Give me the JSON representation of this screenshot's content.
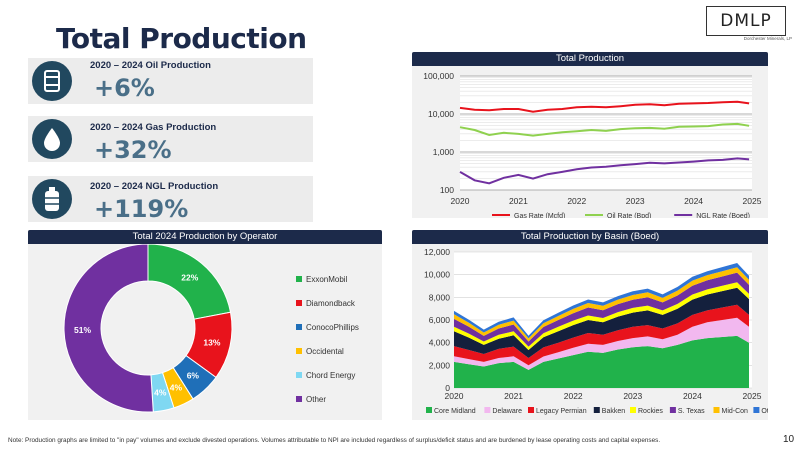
{
  "page": {
    "title": "Total Production",
    "logo_text": "DMLP",
    "logo_subtext": "Dorchester Minerals, LP",
    "footnote": "Note: Production graphs are limited to \"in pay\" volumes and exclude divested operations. Volumes attributable to NPI are included regardless of surplus/deficit status and are burdened by lease operating costs and capital expenses.",
    "page_number": "10"
  },
  "stats": [
    {
      "label": "2020 – 2024 Oil Production",
      "value": "+6%",
      "icon": "oil-barrel-icon"
    },
    {
      "label": "2020 – 2024 Gas Production",
      "value": "+32%",
      "icon": "gas-drop-icon"
    },
    {
      "label": "2020 – 2024 NGL Production",
      "value": "+119%",
      "icon": "ngl-tank-icon"
    }
  ],
  "colors": {
    "navy": "#1c2a4a",
    "accent": "#4a6f88",
    "icon_bg": "#21485f"
  },
  "chart_data": [
    {
      "type": "line",
      "title": "Total Production",
      "yscale": "log",
      "ylim": [
        100,
        100000
      ],
      "yticks": [
        100,
        1000,
        10000,
        100000
      ],
      "ytick_labels": [
        "100",
        "1,000",
        "10,000",
        "100,000"
      ],
      "xlim": [
        2020,
        2025
      ],
      "xticks": [
        2020,
        2021,
        2022,
        2023,
        2024,
        2025
      ],
      "xtick_labels": [
        "2020",
        "2021",
        "2022",
        "2023",
        "2024",
        "2025"
      ],
      "grid": true,
      "legend_position": "bottom",
      "x": [
        2020.0,
        2020.25,
        2020.5,
        2020.75,
        2021.0,
        2021.25,
        2021.5,
        2021.75,
        2022.0,
        2022.25,
        2022.5,
        2022.75,
        2023.0,
        2023.25,
        2023.5,
        2023.75,
        2024.0,
        2024.25,
        2024.5,
        2024.75,
        2024.95
      ],
      "series": [
        {
          "name": "Gas Rate (Mcfd)",
          "color": "#e8131c",
          "values": [
            14500,
            13000,
            12500,
            13500,
            13500,
            11500,
            13000,
            13500,
            15000,
            15500,
            15000,
            16000,
            17500,
            18000,
            17000,
            18500,
            19000,
            19500,
            20500,
            21000,
            19000
          ]
        },
        {
          "name": "Oil Rate (Bpd)",
          "color": "#8fd14f",
          "values": [
            4500,
            3800,
            2800,
            3200,
            3000,
            2700,
            3000,
            3300,
            3500,
            3800,
            3600,
            4000,
            4200,
            4300,
            4100,
            4600,
            4700,
            4800,
            5300,
            5500,
            4900
          ]
        },
        {
          "name": "NGL Rate (Boed)",
          "color": "#7030a0",
          "values": [
            300,
            180,
            150,
            210,
            250,
            200,
            260,
            300,
            350,
            390,
            410,
            450,
            480,
            520,
            500,
            530,
            560,
            600,
            620,
            680,
            640
          ]
        }
      ]
    },
    {
      "type": "pie",
      "title": "Total 2024 Production by Operator",
      "donut": true,
      "legend_position": "right",
      "categories": [
        "ExxonMobil",
        "Diamondback",
        "ConocoPhillips",
        "Occidental",
        "Chord Energy",
        "Other"
      ],
      "values": [
        22,
        13,
        6,
        4,
        4,
        51
      ],
      "labels": [
        "22%",
        "13%",
        "6%",
        "4%",
        "4%",
        "51%"
      ],
      "colors": [
        "#21b24b",
        "#e8131c",
        "#1f6fb8",
        "#ffc000",
        "#7fd8f2",
        "#7030a0"
      ]
    },
    {
      "type": "area",
      "stacked": true,
      "title": "Total Production by Basin (Boed)",
      "ylim": [
        0,
        12000
      ],
      "yticks": [
        0,
        2000,
        4000,
        6000,
        8000,
        10000,
        12000
      ],
      "ytick_labels": [
        "0",
        "2,000",
        "4,000",
        "6,000",
        "8,000",
        "10,000",
        "12,000"
      ],
      "xlim": [
        2020,
        2025
      ],
      "xticks": [
        2020,
        2021,
        2022,
        2023,
        2024,
        2025
      ],
      "xtick_labels": [
        "2020",
        "2021",
        "2022",
        "2023",
        "2024",
        "2025"
      ],
      "grid": true,
      "legend_position": "bottom",
      "x": [
        2020.0,
        2020.25,
        2020.5,
        2020.75,
        2021.0,
        2021.25,
        2021.5,
        2021.75,
        2022.0,
        2022.25,
        2022.5,
        2022.75,
        2023.0,
        2023.25,
        2023.5,
        2023.75,
        2024.0,
        2024.25,
        2024.5,
        2024.75,
        2024.95
      ],
      "series": [
        {
          "name": "Core Midland",
          "color": "#21b24b",
          "values": [
            2300,
            2100,
            1900,
            2200,
            2300,
            1600,
            2300,
            2600,
            2900,
            3200,
            3100,
            3400,
            3600,
            3700,
            3500,
            3800,
            4200,
            4400,
            4500,
            4600,
            4000
          ]
        },
        {
          "name": "Delaware",
          "color": "#f2b8ef",
          "values": [
            500,
            450,
            400,
            450,
            500,
            400,
            480,
            550,
            650,
            700,
            700,
            750,
            800,
            850,
            800,
            900,
            1200,
            1400,
            1500,
            1600,
            1400
          ]
        },
        {
          "name": "Legacy Permian",
          "color": "#e8131c",
          "values": [
            900,
            800,
            700,
            800,
            850,
            650,
            800,
            850,
            900,
            950,
            900,
            950,
            1000,
            1000,
            950,
            1000,
            1050,
            1050,
            1100,
            1150,
            1050
          ]
        },
        {
          "name": "Bakken",
          "color": "#14203d",
          "values": [
            1300,
            1100,
            800,
            900,
            1000,
            700,
            900,
            1000,
            1100,
            1150,
            1100,
            1200,
            1250,
            1300,
            1200,
            1300,
            1350,
            1400,
            1450,
            1500,
            1400
          ]
        },
        {
          "name": "Rockies",
          "color": "#ffff00",
          "values": [
            400,
            350,
            300,
            350,
            350,
            300,
            350,
            400,
            400,
            400,
            380,
            400,
            420,
            420,
            400,
            420,
            450,
            450,
            470,
            480,
            450
          ]
        },
        {
          "name": "S. Texas",
          "color": "#7030a0",
          "values": [
            700,
            600,
            500,
            550,
            600,
            450,
            550,
            600,
            650,
            700,
            680,
            700,
            720,
            740,
            700,
            740,
            780,
            800,
            820,
            850,
            800
          ]
        },
        {
          "name": "Mid-Con",
          "color": "#ffc000",
          "values": [
            400,
            350,
            300,
            330,
            350,
            280,
            330,
            350,
            380,
            400,
            390,
            400,
            420,
            430,
            400,
            430,
            450,
            460,
            470,
            480,
            450
          ]
        },
        {
          "name": "Other",
          "color": "#2f75d6",
          "values": [
            300,
            280,
            250,
            270,
            280,
            230,
            270,
            290,
            300,
            310,
            300,
            310,
            320,
            330,
            310,
            330,
            340,
            350,
            360,
            370,
            350
          ]
        }
      ]
    }
  ]
}
